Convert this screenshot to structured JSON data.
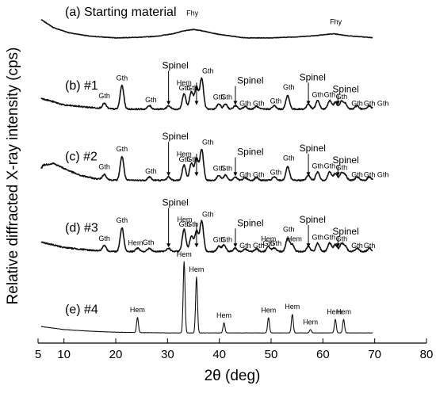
{
  "chart_data": {
    "type": "line",
    "title": "",
    "xlabel": "2θ (deg)",
    "ylabel": "Relative diffracted X-ray intensity (cps)",
    "xlim": [
      5,
      80
    ],
    "x_ticks": [
      5,
      10,
      20,
      30,
      40,
      50,
      60,
      70,
      80
    ],
    "grid": false,
    "legend": "none",
    "series": [
      {
        "name": "(a) Starting material",
        "offset": 0.9,
        "baseline": [
          [
            5,
            0.06
          ],
          [
            8,
            0.03
          ],
          [
            11,
            0.015
          ],
          [
            15,
            0.005
          ],
          [
            20,
            0.0
          ],
          [
            25,
            0.002
          ],
          [
            28,
            0.005
          ],
          [
            31,
            0.012
          ],
          [
            33,
            0.02
          ],
          [
            35,
            0.025
          ],
          [
            37,
            0.02
          ],
          [
            40,
            0.01
          ],
          [
            45,
            0.0
          ],
          [
            50,
            0.0
          ],
          [
            55,
            0.003
          ],
          [
            58,
            0.006
          ],
          [
            62,
            0.012
          ],
          [
            65,
            0.006
          ],
          [
            70,
            0.0
          ]
        ],
        "peaks": [],
        "labels": [
          {
            "text": "Fhy",
            "x": 34.8,
            "dy": 0.042
          },
          {
            "text": "Fhy",
            "x": 62.5,
            "dy": 0.03
          }
        ]
      },
      {
        "name": "(b) #1",
        "offset": 0.69,
        "baseline": [
          [
            5,
            0.035
          ],
          [
            10,
            0.012
          ],
          [
            15,
            0.005
          ],
          [
            20,
            0.0
          ],
          [
            30,
            0.0
          ],
          [
            40,
            0.0
          ],
          [
            50,
            0.0
          ],
          [
            60,
            0.0
          ],
          [
            70,
            0.0
          ]
        ],
        "peaks": [
          [
            17.8,
            0.015
          ],
          [
            21.2,
            0.07
          ],
          [
            26.5,
            0.01
          ],
          [
            30.2,
            0.01
          ],
          [
            33.2,
            0.045
          ],
          [
            34.6,
            0.05
          ],
          [
            35.6,
            0.065
          ],
          [
            36.6,
            0.09
          ],
          [
            39.9,
            0.015
          ],
          [
            41.2,
            0.015
          ],
          [
            43.1,
            0.01
          ],
          [
            45.0,
            0.008
          ],
          [
            47.2,
            0.008
          ],
          [
            50.6,
            0.01
          ],
          [
            53.2,
            0.04
          ],
          [
            57.2,
            0.015
          ],
          [
            59.0,
            0.025
          ],
          [
            61.3,
            0.025
          ],
          [
            62.4,
            0.02
          ],
          [
            63.6,
            0.022
          ],
          [
            64.3,
            0.015
          ],
          [
            66.6,
            0.01
          ],
          [
            69.0,
            0.01
          ],
          [
            71.6,
            0.008
          ]
        ],
        "labels": [
          {
            "text": "Gth",
            "x": 17.8,
            "dy": 0.03
          },
          {
            "text": "Gth",
            "x": 21.2,
            "dy": 0.085
          },
          {
            "text": "Gth",
            "x": 26.8,
            "dy": 0.02
          },
          {
            "text": "Hem",
            "x": 33.2,
            "dy": 0.07
          },
          {
            "text": "Gth",
            "x": 33.3,
            "dy": 0.055
          },
          {
            "text": "Gth",
            "x": 34.8,
            "dy": 0.055
          },
          {
            "text": "Gth",
            "x": 37.8,
            "dy": 0.105
          },
          {
            "text": "Gth",
            "x": 39.9,
            "dy": 0.028
          },
          {
            "text": "Gth",
            "x": 41.4,
            "dy": 0.028
          },
          {
            "text": "Gth",
            "x": 45.0,
            "dy": 0.01
          },
          {
            "text": "Gth",
            "x": 47.6,
            "dy": 0.01
          },
          {
            "text": "Gth",
            "x": 50.9,
            "dy": 0.017
          },
          {
            "text": "Gth",
            "x": 53.4,
            "dy": 0.058
          },
          {
            "text": "Gth",
            "x": 59.0,
            "dy": 0.035
          },
          {
            "text": "Gth",
            "x": 61.3,
            "dy": 0.035
          },
          {
            "text": "Gth",
            "x": 63.6,
            "dy": 0.03
          },
          {
            "text": "Gth",
            "x": 66.6,
            "dy": 0.01
          },
          {
            "text": "Gth",
            "x": 69.0,
            "dy": 0.01
          },
          {
            "text": "Gth",
            "x": 71.6,
            "dy": 0.01
          }
        ],
        "arrows": [
          {
            "text": "Spinel",
            "x": 30.2,
            "label_x": 31.5,
            "label_dy": 0.12
          },
          {
            "text": "Spinel",
            "x": 43.1,
            "label_x": 46.0,
            "label_dy": 0.075
          },
          {
            "text": "Spinel",
            "x": 57.2,
            "label_x": 58.0,
            "label_dy": 0.085
          },
          {
            "text": "Spinel",
            "x": 62.9,
            "label_x": 64.4,
            "label_dy": 0.05
          },
          {
            "text": "",
            "x": 35.6,
            "label_x": 35.6,
            "label_dy": 0.085
          }
        ]
      },
      {
        "name": "(c) #2",
        "offset": 0.48,
        "baseline": [
          [
            5,
            0.02
          ],
          [
            6,
            0.045
          ],
          [
            8,
            0.05
          ],
          [
            10,
            0.035
          ],
          [
            13,
            0.015
          ],
          [
            16,
            0.005
          ],
          [
            20,
            0.0
          ],
          [
            30,
            0.0
          ],
          [
            40,
            0.0
          ],
          [
            50,
            0.0
          ],
          [
            60,
            0.0
          ],
          [
            70,
            0.0
          ]
        ],
        "peaks": [
          [
            17.8,
            0.015
          ],
          [
            21.2,
            0.07
          ],
          [
            26.5,
            0.01
          ],
          [
            30.2,
            0.01
          ],
          [
            33.2,
            0.045
          ],
          [
            34.6,
            0.05
          ],
          [
            35.6,
            0.065
          ],
          [
            36.6,
            0.09
          ],
          [
            39.9,
            0.015
          ],
          [
            41.2,
            0.015
          ],
          [
            43.1,
            0.01
          ],
          [
            45.0,
            0.008
          ],
          [
            47.2,
            0.008
          ],
          [
            50.6,
            0.01
          ],
          [
            53.2,
            0.04
          ],
          [
            57.2,
            0.015
          ],
          [
            59.0,
            0.025
          ],
          [
            61.3,
            0.025
          ],
          [
            62.4,
            0.02
          ],
          [
            63.6,
            0.022
          ],
          [
            64.3,
            0.015
          ],
          [
            66.6,
            0.01
          ],
          [
            69.0,
            0.01
          ],
          [
            71.6,
            0.008
          ]
        ],
        "labels": [
          {
            "text": "Gth",
            "x": 17.8,
            "dy": 0.03
          },
          {
            "text": "Gth",
            "x": 21.2,
            "dy": 0.085
          },
          {
            "text": "Gth",
            "x": 26.8,
            "dy": 0.02
          },
          {
            "text": "Hem",
            "x": 33.2,
            "dy": 0.07
          },
          {
            "text": "Gth",
            "x": 33.3,
            "dy": 0.055
          },
          {
            "text": "Gth",
            "x": 34.8,
            "dy": 0.055
          },
          {
            "text": "Gth",
            "x": 37.8,
            "dy": 0.105
          },
          {
            "text": "Gth",
            "x": 39.9,
            "dy": 0.028
          },
          {
            "text": "Gth",
            "x": 41.4,
            "dy": 0.028
          },
          {
            "text": "Gth",
            "x": 45.0,
            "dy": 0.01
          },
          {
            "text": "Gth",
            "x": 47.6,
            "dy": 0.01
          },
          {
            "text": "Gth",
            "x": 50.9,
            "dy": 0.017
          },
          {
            "text": "Gth",
            "x": 53.4,
            "dy": 0.058
          },
          {
            "text": "Gth",
            "x": 59.0,
            "dy": 0.035
          },
          {
            "text": "Gth",
            "x": 61.3,
            "dy": 0.035
          },
          {
            "text": "Gth",
            "x": 63.6,
            "dy": 0.03
          },
          {
            "text": "Gth",
            "x": 66.6,
            "dy": 0.01
          },
          {
            "text": "Gth",
            "x": 69.0,
            "dy": 0.01
          },
          {
            "text": "Gth",
            "x": 71.6,
            "dy": 0.01
          }
        ],
        "arrows": [
          {
            "text": "Spinel",
            "x": 30.2,
            "label_x": 31.5,
            "label_dy": 0.12
          },
          {
            "text": "Spinel",
            "x": 43.1,
            "label_x": 46.0,
            "label_dy": 0.075
          },
          {
            "text": "Spinel",
            "x": 57.2,
            "label_x": 58.0,
            "label_dy": 0.085
          },
          {
            "text": "Spinel",
            "x": 62.9,
            "label_x": 64.4,
            "label_dy": 0.05
          },
          {
            "text": "",
            "x": 35.6,
            "label_x": 35.6,
            "label_dy": 0.085
          }
        ]
      },
      {
        "name": "(d) #3",
        "offset": 0.27,
        "baseline": [
          [
            5,
            0.03
          ],
          [
            10,
            0.012
          ],
          [
            15,
            0.004
          ],
          [
            20,
            0.0
          ],
          [
            30,
            0.0
          ],
          [
            40,
            0.0
          ],
          [
            50,
            0.0
          ],
          [
            60,
            0.0
          ],
          [
            70,
            0.0
          ]
        ],
        "peaks": [
          [
            17.8,
            0.015
          ],
          [
            21.2,
            0.07
          ],
          [
            24.2,
            0.01
          ],
          [
            26.5,
            0.01
          ],
          [
            30.2,
            0.01
          ],
          [
            33.2,
            0.065
          ],
          [
            34.6,
            0.045
          ],
          [
            35.6,
            0.06
          ],
          [
            36.6,
            0.09
          ],
          [
            39.9,
            0.015
          ],
          [
            40.9,
            0.02
          ],
          [
            43.1,
            0.01
          ],
          [
            45.0,
            0.008
          ],
          [
            47.2,
            0.008
          ],
          [
            49.5,
            0.015
          ],
          [
            50.6,
            0.01
          ],
          [
            53.2,
            0.04
          ],
          [
            54.1,
            0.02
          ],
          [
            57.2,
            0.015
          ],
          [
            59.0,
            0.025
          ],
          [
            61.3,
            0.025
          ],
          [
            62.4,
            0.02
          ],
          [
            63.6,
            0.022
          ],
          [
            64.3,
            0.015
          ],
          [
            66.6,
            0.01
          ],
          [
            69.0,
            0.01
          ]
        ],
        "labels": [
          {
            "text": "Gth",
            "x": 17.8,
            "dy": 0.03
          },
          {
            "text": "Gth",
            "x": 21.2,
            "dy": 0.085
          },
          {
            "text": "Hem",
            "x": 23.8,
            "dy": 0.018
          },
          {
            "text": "Gth",
            "x": 26.3,
            "dy": 0.02
          },
          {
            "text": "Hem",
            "x": 33.3,
            "dy": 0.088
          },
          {
            "text": "Gth",
            "x": 33.3,
            "dy": 0.073
          },
          {
            "text": "Gth",
            "x": 34.8,
            "dy": 0.073
          },
          {
            "text": "Gth",
            "x": 37.8,
            "dy": 0.103
          },
          {
            "text": "Gth",
            "x": 39.9,
            "dy": 0.028
          },
          {
            "text": "Gth",
            "x": 41.4,
            "dy": 0.028
          },
          {
            "text": "Gth",
            "x": 45.0,
            "dy": 0.01
          },
          {
            "text": "Gth",
            "x": 47.6,
            "dy": 0.01
          },
          {
            "text": "Hem",
            "x": 49.5,
            "dy": 0.03
          },
          {
            "text": "Gth",
            "x": 49.5,
            "dy": 0.017
          },
          {
            "text": "Gth",
            "x": 50.9,
            "dy": 0.017
          },
          {
            "text": "Gth",
            "x": 53.4,
            "dy": 0.058
          },
          {
            "text": "Hem",
            "x": 54.5,
            "dy": 0.03
          },
          {
            "text": "Gth",
            "x": 59.0,
            "dy": 0.035
          },
          {
            "text": "Gth",
            "x": 61.3,
            "dy": 0.035
          },
          {
            "text": "Gth",
            "x": 63.6,
            "dy": 0.03
          },
          {
            "text": "Gth",
            "x": 66.6,
            "dy": 0.01
          },
          {
            "text": "Gth",
            "x": 69.0,
            "dy": 0.01
          }
        ],
        "arrows": [
          {
            "text": "Spinel",
            "x": 30.2,
            "label_x": 31.5,
            "label_dy": 0.135
          },
          {
            "text": "Spinel",
            "x": 43.1,
            "label_x": 46.0,
            "label_dy": 0.075
          },
          {
            "text": "Spinel",
            "x": 57.2,
            "label_x": 58.0,
            "label_dy": 0.085
          },
          {
            "text": "Spinel",
            "x": 62.9,
            "label_x": 64.4,
            "label_dy": 0.05
          },
          {
            "text": "",
            "x": 35.6,
            "label_x": 35.6,
            "label_dy": 0.09
          }
        ]
      },
      {
        "name": "(e) #4",
        "offset": 0.03,
        "baseline": [
          [
            5,
            0.02
          ],
          [
            10,
            0.01
          ],
          [
            15,
            0.005
          ],
          [
            20,
            0.002
          ],
          [
            30,
            0.0
          ],
          [
            40,
            0.0
          ],
          [
            50,
            0.0
          ],
          [
            60,
            0.0
          ],
          [
            70,
            0.0
          ]
        ],
        "peaks": [
          [
            24.2,
            0.045
          ],
          [
            33.2,
            0.21
          ],
          [
            35.6,
            0.165
          ],
          [
            40.9,
            0.03
          ],
          [
            49.5,
            0.045
          ],
          [
            54.1,
            0.055
          ],
          [
            57.6,
            0.01
          ],
          [
            62.4,
            0.04
          ],
          [
            64.0,
            0.04
          ]
        ],
        "labels": [
          {
            "text": "Hem",
            "x": 24.2,
            "dy": 0.06
          },
          {
            "text": "Hem",
            "x": 33.2,
            "dy": 0.225
          },
          {
            "text": "Hem",
            "x": 35.6,
            "dy": 0.18
          },
          {
            "text": "Hem",
            "x": 40.9,
            "dy": 0.045
          },
          {
            "text": "Hem",
            "x": 49.5,
            "dy": 0.06
          },
          {
            "text": "Hem",
            "x": 54.1,
            "dy": 0.07
          },
          {
            "text": "Hem",
            "x": 57.6,
            "dy": 0.025
          },
          {
            "text": "Hem",
            "x": 62.2,
            "dy": 0.055
          },
          {
            "text": "Hem",
            "x": 64.0,
            "dy": 0.055
          }
        ],
        "arrows": []
      }
    ]
  }
}
